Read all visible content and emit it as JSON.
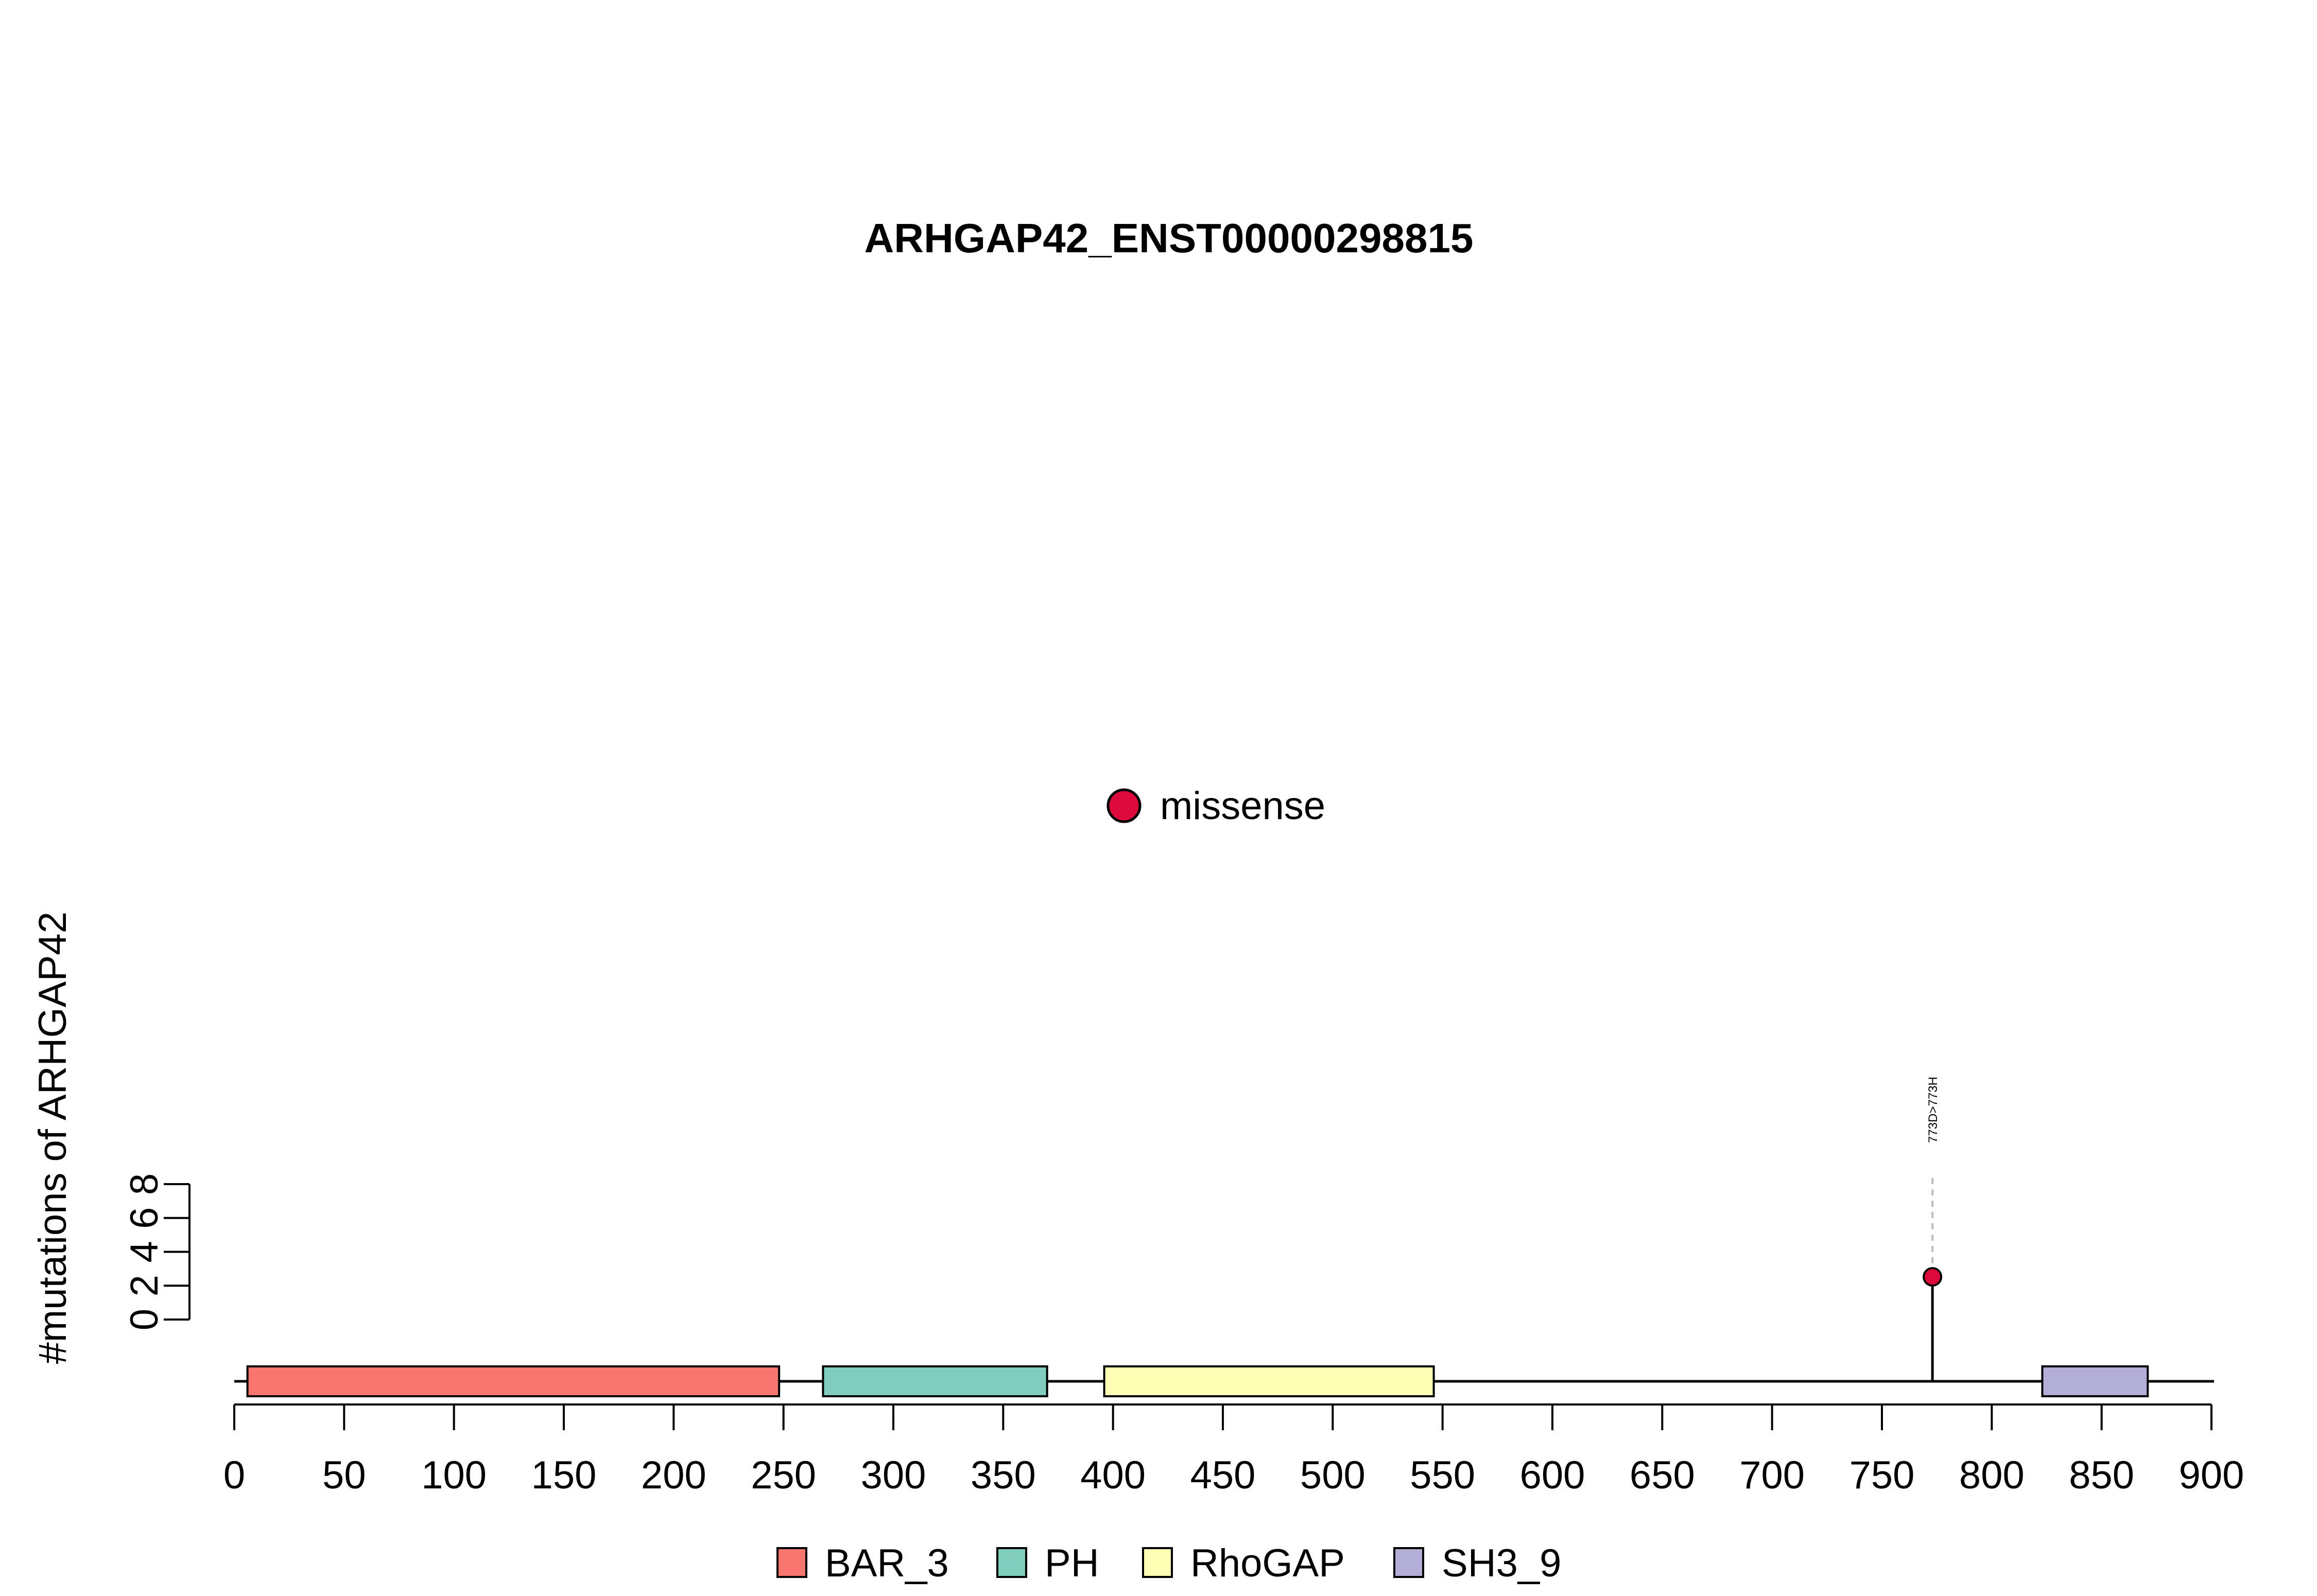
{
  "chart_data": {
    "type": "lollipop",
    "title": "ARHGAP42_ENST00000298815",
    "ylabel": "#mutations of ARHGAP42",
    "xlim": [
      0,
      900
    ],
    "x_ticks": [
      0,
      50,
      100,
      150,
      200,
      250,
      300,
      350,
      400,
      450,
      500,
      550,
      600,
      650,
      700,
      750,
      800,
      850,
      900
    ],
    "ylim": [
      0,
      8
    ],
    "y_ticks": [
      0,
      2,
      4,
      6,
      8
    ],
    "protein_length": 900,
    "mutation_legend": [
      {
        "label": "missense",
        "color": "#DC0A3C"
      }
    ],
    "mutations": [
      {
        "position": 773,
        "count": 1,
        "label": "773D>773H",
        "type": "missense",
        "color": "#DC0A3C"
      }
    ],
    "domains": [
      {
        "name": "BAR_3",
        "start": 6,
        "end": 248,
        "color": "#F8766D"
      },
      {
        "name": "PH",
        "start": 268,
        "end": 370,
        "color": "#7FCDBB"
      },
      {
        "name": "RhoGAP",
        "start": 396,
        "end": 546,
        "color": "#FFFFB3"
      },
      {
        "name": "SH3_9",
        "start": 823,
        "end": 871,
        "color": "#B3AED6"
      }
    ],
    "domain_legend": [
      "BAR_3",
      "PH",
      "RhoGAP",
      "SH3_9"
    ]
  }
}
